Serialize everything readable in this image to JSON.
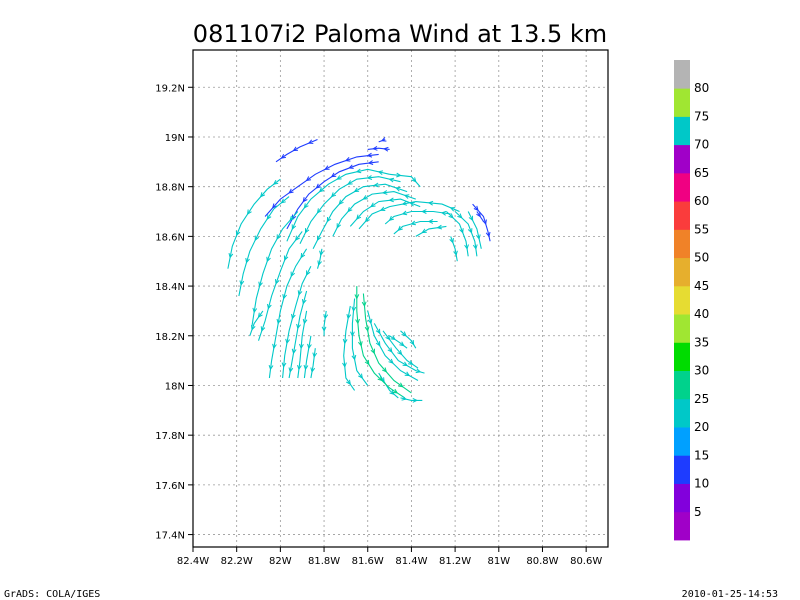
{
  "chart_data": {
    "type": "streamline",
    "title": "081107i2 Paloma Wind at 13.5 km",
    "xlabel": "",
    "ylabel": "",
    "xlim": [
      -82.4,
      -80.5
    ],
    "ylim": [
      17.35,
      19.35
    ],
    "x_ticks": [
      {
        "v": -82.4,
        "label": "82.4W"
      },
      {
        "v": -82.2,
        "label": "82.2W"
      },
      {
        "v": -82.0,
        "label": "82W"
      },
      {
        "v": -81.8,
        "label": "81.8W"
      },
      {
        "v": -81.6,
        "label": "81.6W"
      },
      {
        "v": -81.4,
        "label": "81.4W"
      },
      {
        "v": -81.2,
        "label": "81.2W"
      },
      {
        "v": -81.0,
        "label": "81W"
      },
      {
        "v": -80.8,
        "label": "80.8W"
      },
      {
        "v": -80.6,
        "label": "80.6W"
      }
    ],
    "y_ticks": [
      {
        "v": 17.4,
        "label": "17.4N"
      },
      {
        "v": 17.6,
        "label": "17.6N"
      },
      {
        "v": 17.8,
        "label": "17.8N"
      },
      {
        "v": 18.0,
        "label": "18N"
      },
      {
        "v": 18.2,
        "label": "18.2N"
      },
      {
        "v": 18.4,
        "label": "18.4N"
      },
      {
        "v": 18.6,
        "label": "18.6N"
      },
      {
        "v": 18.8,
        "label": "18.8N"
      },
      {
        "v": 19.0,
        "label": "19N"
      },
      {
        "v": 19.2,
        "label": "19.2N"
      }
    ],
    "grid": true,
    "colorbar": {
      "segments": [
        {
          "color": "#a000c8"
        },
        {
          "color": "#8200dc"
        },
        {
          "color": "#1e3cff"
        },
        {
          "color": "#00a0ff"
        },
        {
          "color": "#00c8c8"
        },
        {
          "color": "#00d28c"
        },
        {
          "color": "#00dc00"
        },
        {
          "color": "#a0e632"
        },
        {
          "color": "#e6dc32"
        },
        {
          "color": "#e6af2d"
        },
        {
          "color": "#f08228"
        },
        {
          "color": "#fa3c3c"
        },
        {
          "color": "#f00082"
        },
        {
          "color": "#a000c8"
        },
        {
          "color": "#00c8c8"
        },
        {
          "color": "#a0e632"
        },
        {
          "color": "#b4b4b4"
        }
      ],
      "labels": [
        "5",
        "10",
        "15",
        "20",
        "25",
        "30",
        "35",
        "40",
        "45",
        "50",
        "55",
        "60",
        "65",
        "70",
        "75",
        "80"
      ]
    },
    "streamlines": [
      {
        "color": "#1e3cff",
        "points": [
          [
            -81.83,
            18.99
          ],
          [
            -81.91,
            18.96
          ],
          [
            -81.97,
            18.93
          ],
          [
            -82.02,
            18.9
          ]
        ]
      },
      {
        "color": "#1e3cff",
        "points": [
          [
            -81.52,
            18.99
          ],
          [
            -81.55,
            18.98
          ]
        ]
      },
      {
        "color": "#1e3cff",
        "points": [
          [
            -81.5,
            18.95
          ],
          [
            -81.55,
            18.955
          ],
          [
            -81.6,
            18.95
          ]
        ]
      },
      {
        "color": "#1e3cff",
        "points": [
          [
            -81.55,
            18.93
          ],
          [
            -81.65,
            18.92
          ],
          [
            -81.75,
            18.89
          ],
          [
            -81.84,
            18.85
          ],
          [
            -81.92,
            18.8
          ],
          [
            -82.0,
            18.75
          ],
          [
            -82.07,
            18.68
          ]
        ]
      },
      {
        "color": "#1e3cff",
        "points": [
          [
            -81.55,
            18.9
          ],
          [
            -81.64,
            18.89
          ],
          [
            -81.73,
            18.86
          ],
          [
            -81.8,
            18.82
          ],
          [
            -81.87,
            18.77
          ],
          [
            -81.92,
            18.71
          ],
          [
            -81.97,
            18.63
          ]
        ]
      },
      {
        "color": "#1e3cff",
        "points": [
          [
            -81.1,
            18.7
          ],
          [
            -81.07,
            18.66
          ]
        ]
      },
      {
        "color": "#1e3cff",
        "points": [
          [
            -81.12,
            18.73
          ],
          [
            -81.07,
            18.68
          ],
          [
            -81.05,
            18.62
          ],
          [
            -81.04,
            18.58
          ]
        ]
      },
      {
        "color": "#00c8c8",
        "points": [
          [
            -81.5,
            18.85
          ],
          [
            -81.6,
            18.87
          ],
          [
            -81.7,
            18.85
          ],
          [
            -81.78,
            18.81
          ],
          [
            -81.86,
            18.75
          ],
          [
            -81.92,
            18.68
          ],
          [
            -81.97,
            18.58
          ]
        ]
      },
      {
        "color": "#00c8c8",
        "points": [
          [
            -81.45,
            18.82
          ],
          [
            -81.55,
            18.84
          ],
          [
            -81.65,
            18.83
          ],
          [
            -81.73,
            18.79
          ],
          [
            -81.8,
            18.73
          ],
          [
            -81.86,
            18.66
          ],
          [
            -81.91,
            18.57
          ]
        ]
      },
      {
        "color": "#00c8c8",
        "points": [
          [
            -81.42,
            18.78
          ],
          [
            -81.52,
            18.81
          ],
          [
            -81.62,
            18.8
          ],
          [
            -81.7,
            18.76
          ],
          [
            -81.76,
            18.7
          ],
          [
            -81.81,
            18.62
          ],
          [
            -81.85,
            18.55
          ]
        ]
      },
      {
        "color": "#00c8c8",
        "points": [
          [
            -81.38,
            18.75
          ],
          [
            -81.48,
            18.78
          ],
          [
            -81.58,
            18.77
          ],
          [
            -81.66,
            18.73
          ],
          [
            -81.72,
            18.67
          ],
          [
            -81.76,
            18.6
          ]
        ]
      },
      {
        "color": "#00c8c8",
        "points": [
          [
            -81.36,
            18.72
          ],
          [
            -81.45,
            18.75
          ],
          [
            -81.55,
            18.74
          ],
          [
            -81.62,
            18.7
          ],
          [
            -81.68,
            18.64
          ]
        ]
      },
      {
        "color": "#00c8c8",
        "points": [
          [
            -81.5,
            18.85
          ],
          [
            -81.4,
            18.84
          ],
          [
            -81.36,
            18.8
          ]
        ]
      },
      {
        "color": "#00c8c8",
        "points": [
          [
            -81.14,
            18.7
          ],
          [
            -81.1,
            18.63
          ],
          [
            -81.08,
            18.55
          ]
        ]
      },
      {
        "color": "#00c8c8",
        "points": [
          [
            -81.2,
            18.7
          ],
          [
            -81.14,
            18.65
          ],
          [
            -81.11,
            18.58
          ],
          [
            -81.1,
            18.52
          ]
        ]
      },
      {
        "color": "#00c8c8",
        "points": [
          [
            -81.24,
            18.7
          ],
          [
            -81.18,
            18.65
          ],
          [
            -81.15,
            18.58
          ],
          [
            -81.14,
            18.52
          ]
        ]
      },
      {
        "color": "#00c8c8",
        "points": [
          [
            -81.18,
            18.7
          ],
          [
            -81.26,
            18.73
          ],
          [
            -81.38,
            18.74
          ],
          [
            -81.5,
            18.72
          ],
          [
            -81.58,
            18.69
          ],
          [
            -81.64,
            18.63
          ]
        ]
      },
      {
        "color": "#00c8c8",
        "points": [
          [
            -81.22,
            18.69
          ],
          [
            -81.3,
            18.7
          ],
          [
            -81.4,
            18.7
          ],
          [
            -81.48,
            18.68
          ],
          [
            -81.52,
            18.65
          ]
        ]
      },
      {
        "color": "#00c8c8",
        "points": [
          [
            -81.28,
            18.66
          ],
          [
            -81.36,
            18.66
          ],
          [
            -81.44,
            18.64
          ],
          [
            -81.48,
            18.61
          ]
        ]
      },
      {
        "color": "#00c8c8",
        "points": [
          [
            -81.24,
            18.64
          ],
          [
            -81.32,
            18.63
          ],
          [
            -81.38,
            18.6
          ]
        ]
      },
      {
        "color": "#00c8c8",
        "points": [
          [
            -81.22,
            18.6
          ],
          [
            -81.2,
            18.55
          ],
          [
            -81.19,
            18.5
          ]
        ]
      },
      {
        "color": "#00c8c8",
        "points": [
          [
            -82.0,
            18.83
          ],
          [
            -82.06,
            18.79
          ],
          [
            -82.12,
            18.73
          ],
          [
            -82.18,
            18.65
          ],
          [
            -82.22,
            18.56
          ],
          [
            -82.24,
            18.47
          ]
        ]
      },
      {
        "color": "#00c8c8",
        "points": [
          [
            -81.96,
            18.76
          ],
          [
            -82.03,
            18.71
          ],
          [
            -82.09,
            18.63
          ],
          [
            -82.14,
            18.54
          ],
          [
            -82.17,
            18.45
          ],
          [
            -82.19,
            18.36
          ]
        ]
      },
      {
        "color": "#00c8c8",
        "points": [
          [
            -81.92,
            18.7
          ],
          [
            -81.99,
            18.63
          ],
          [
            -82.04,
            18.55
          ],
          [
            -82.08,
            18.45
          ],
          [
            -82.11,
            18.35
          ],
          [
            -82.13,
            18.24
          ]
        ]
      },
      {
        "color": "#00c8c8",
        "points": [
          [
            -81.9,
            18.62
          ],
          [
            -81.96,
            18.55
          ],
          [
            -82.0,
            18.46
          ],
          [
            -82.04,
            18.36
          ],
          [
            -82.07,
            18.26
          ],
          [
            -82.1,
            18.18
          ]
        ]
      },
      {
        "color": "#00c8c8",
        "points": [
          [
            -81.88,
            18.55
          ],
          [
            -81.93,
            18.48
          ],
          [
            -81.97,
            18.4
          ],
          [
            -82.0,
            18.3
          ],
          [
            -82.02,
            18.2
          ],
          [
            -82.04,
            18.1
          ],
          [
            -82.05,
            18.03
          ]
        ]
      },
      {
        "color": "#00c8c8",
        "points": [
          [
            -81.86,
            18.48
          ],
          [
            -81.9,
            18.41
          ],
          [
            -81.93,
            18.32
          ],
          [
            -81.96,
            18.22
          ],
          [
            -81.98,
            18.12
          ],
          [
            -81.99,
            18.03
          ]
        ]
      },
      {
        "color": "#00c8c8",
        "points": [
          [
            -81.88,
            18.38
          ],
          [
            -81.91,
            18.28
          ],
          [
            -81.93,
            18.18
          ],
          [
            -81.95,
            18.08
          ],
          [
            -81.96,
            18.03
          ]
        ]
      },
      {
        "color": "#00c8c8",
        "points": [
          [
            -81.88,
            18.3
          ],
          [
            -81.9,
            18.2
          ],
          [
            -81.91,
            18.1
          ],
          [
            -81.92,
            18.03
          ]
        ]
      },
      {
        "color": "#00c8c8",
        "points": [
          [
            -81.86,
            18.2
          ],
          [
            -81.88,
            18.1
          ],
          [
            -81.89,
            18.03
          ]
        ]
      },
      {
        "color": "#00c8c8",
        "points": [
          [
            -81.84,
            18.15
          ],
          [
            -81.85,
            18.08
          ],
          [
            -81.86,
            18.03
          ]
        ]
      },
      {
        "color": "#00c8c8",
        "points": [
          [
            -82.08,
            18.3
          ],
          [
            -82.12,
            18.25
          ],
          [
            -82.14,
            18.2
          ]
        ]
      },
      {
        "color": "#00c8c8",
        "points": [
          [
            -81.79,
            18.3
          ],
          [
            -81.8,
            18.24
          ],
          [
            -81.8,
            18.2
          ]
        ]
      },
      {
        "color": "#00c8c8",
        "points": [
          [
            -81.81,
            18.55
          ],
          [
            -81.82,
            18.5
          ],
          [
            -81.83,
            18.47
          ]
        ]
      },
      {
        "color": "#00c8c8",
        "points": [
          [
            -81.68,
            18.32
          ],
          [
            -81.7,
            18.22
          ],
          [
            -81.71,
            18.12
          ],
          [
            -81.7,
            18.03
          ],
          [
            -81.66,
            17.98
          ]
        ]
      },
      {
        "color": "#00c8c8",
        "points": [
          [
            -81.66,
            18.35
          ],
          [
            -81.67,
            18.25
          ],
          [
            -81.67,
            18.15
          ],
          [
            -81.65,
            18.06
          ],
          [
            -81.6,
            18.0
          ]
        ]
      },
      {
        "color": "#00c8c8",
        "points": [
          [
            -81.55,
            18.05
          ],
          [
            -81.5,
            17.98
          ],
          [
            -81.46,
            17.95
          ]
        ]
      },
      {
        "color": "#00d28c",
        "points": [
          [
            -81.65,
            18.4
          ],
          [
            -81.65,
            18.3
          ],
          [
            -81.64,
            18.2
          ],
          [
            -81.62,
            18.12
          ],
          [
            -81.57,
            18.05
          ],
          [
            -81.5,
            17.99
          ],
          [
            -81.43,
            17.95
          ]
        ]
      },
      {
        "color": "#00d28c",
        "points": [
          [
            -81.62,
            18.37
          ],
          [
            -81.61,
            18.27
          ],
          [
            -81.59,
            18.17
          ],
          [
            -81.55,
            18.09
          ],
          [
            -81.48,
            18.02
          ],
          [
            -81.4,
            17.97
          ]
        ]
      },
      {
        "color": "#00c8c8",
        "points": [
          [
            -81.6,
            18.3
          ],
          [
            -81.57,
            18.2
          ],
          [
            -81.52,
            18.12
          ],
          [
            -81.45,
            18.06
          ],
          [
            -81.37,
            18.02
          ]
        ]
      },
      {
        "color": "#00c8c8",
        "points": [
          [
            -81.57,
            18.25
          ],
          [
            -81.52,
            18.17
          ],
          [
            -81.46,
            18.1
          ],
          [
            -81.38,
            18.06
          ],
          [
            -81.34,
            18.05
          ]
        ]
      },
      {
        "color": "#00c8c8",
        "points": [
          [
            -81.53,
            18.22
          ],
          [
            -81.47,
            18.15
          ],
          [
            -81.42,
            18.1
          ],
          [
            -81.37,
            18.07
          ]
        ]
      },
      {
        "color": "#00c8c8",
        "points": [
          [
            -81.5,
            18.2
          ],
          [
            -81.45,
            18.17
          ],
          [
            -81.42,
            18.15
          ]
        ]
      },
      {
        "color": "#00c8c8",
        "points": [
          [
            -81.45,
            18.22
          ],
          [
            -81.4,
            18.18
          ],
          [
            -81.38,
            18.15
          ]
        ]
      },
      {
        "color": "#00c8c8",
        "points": [
          [
            -81.45,
            17.95
          ],
          [
            -81.4,
            17.94
          ],
          [
            -81.35,
            17.94
          ]
        ]
      }
    ]
  },
  "footer": {
    "left": "GrADS: COLA/IGES",
    "right": "2010-01-25-14:53"
  }
}
